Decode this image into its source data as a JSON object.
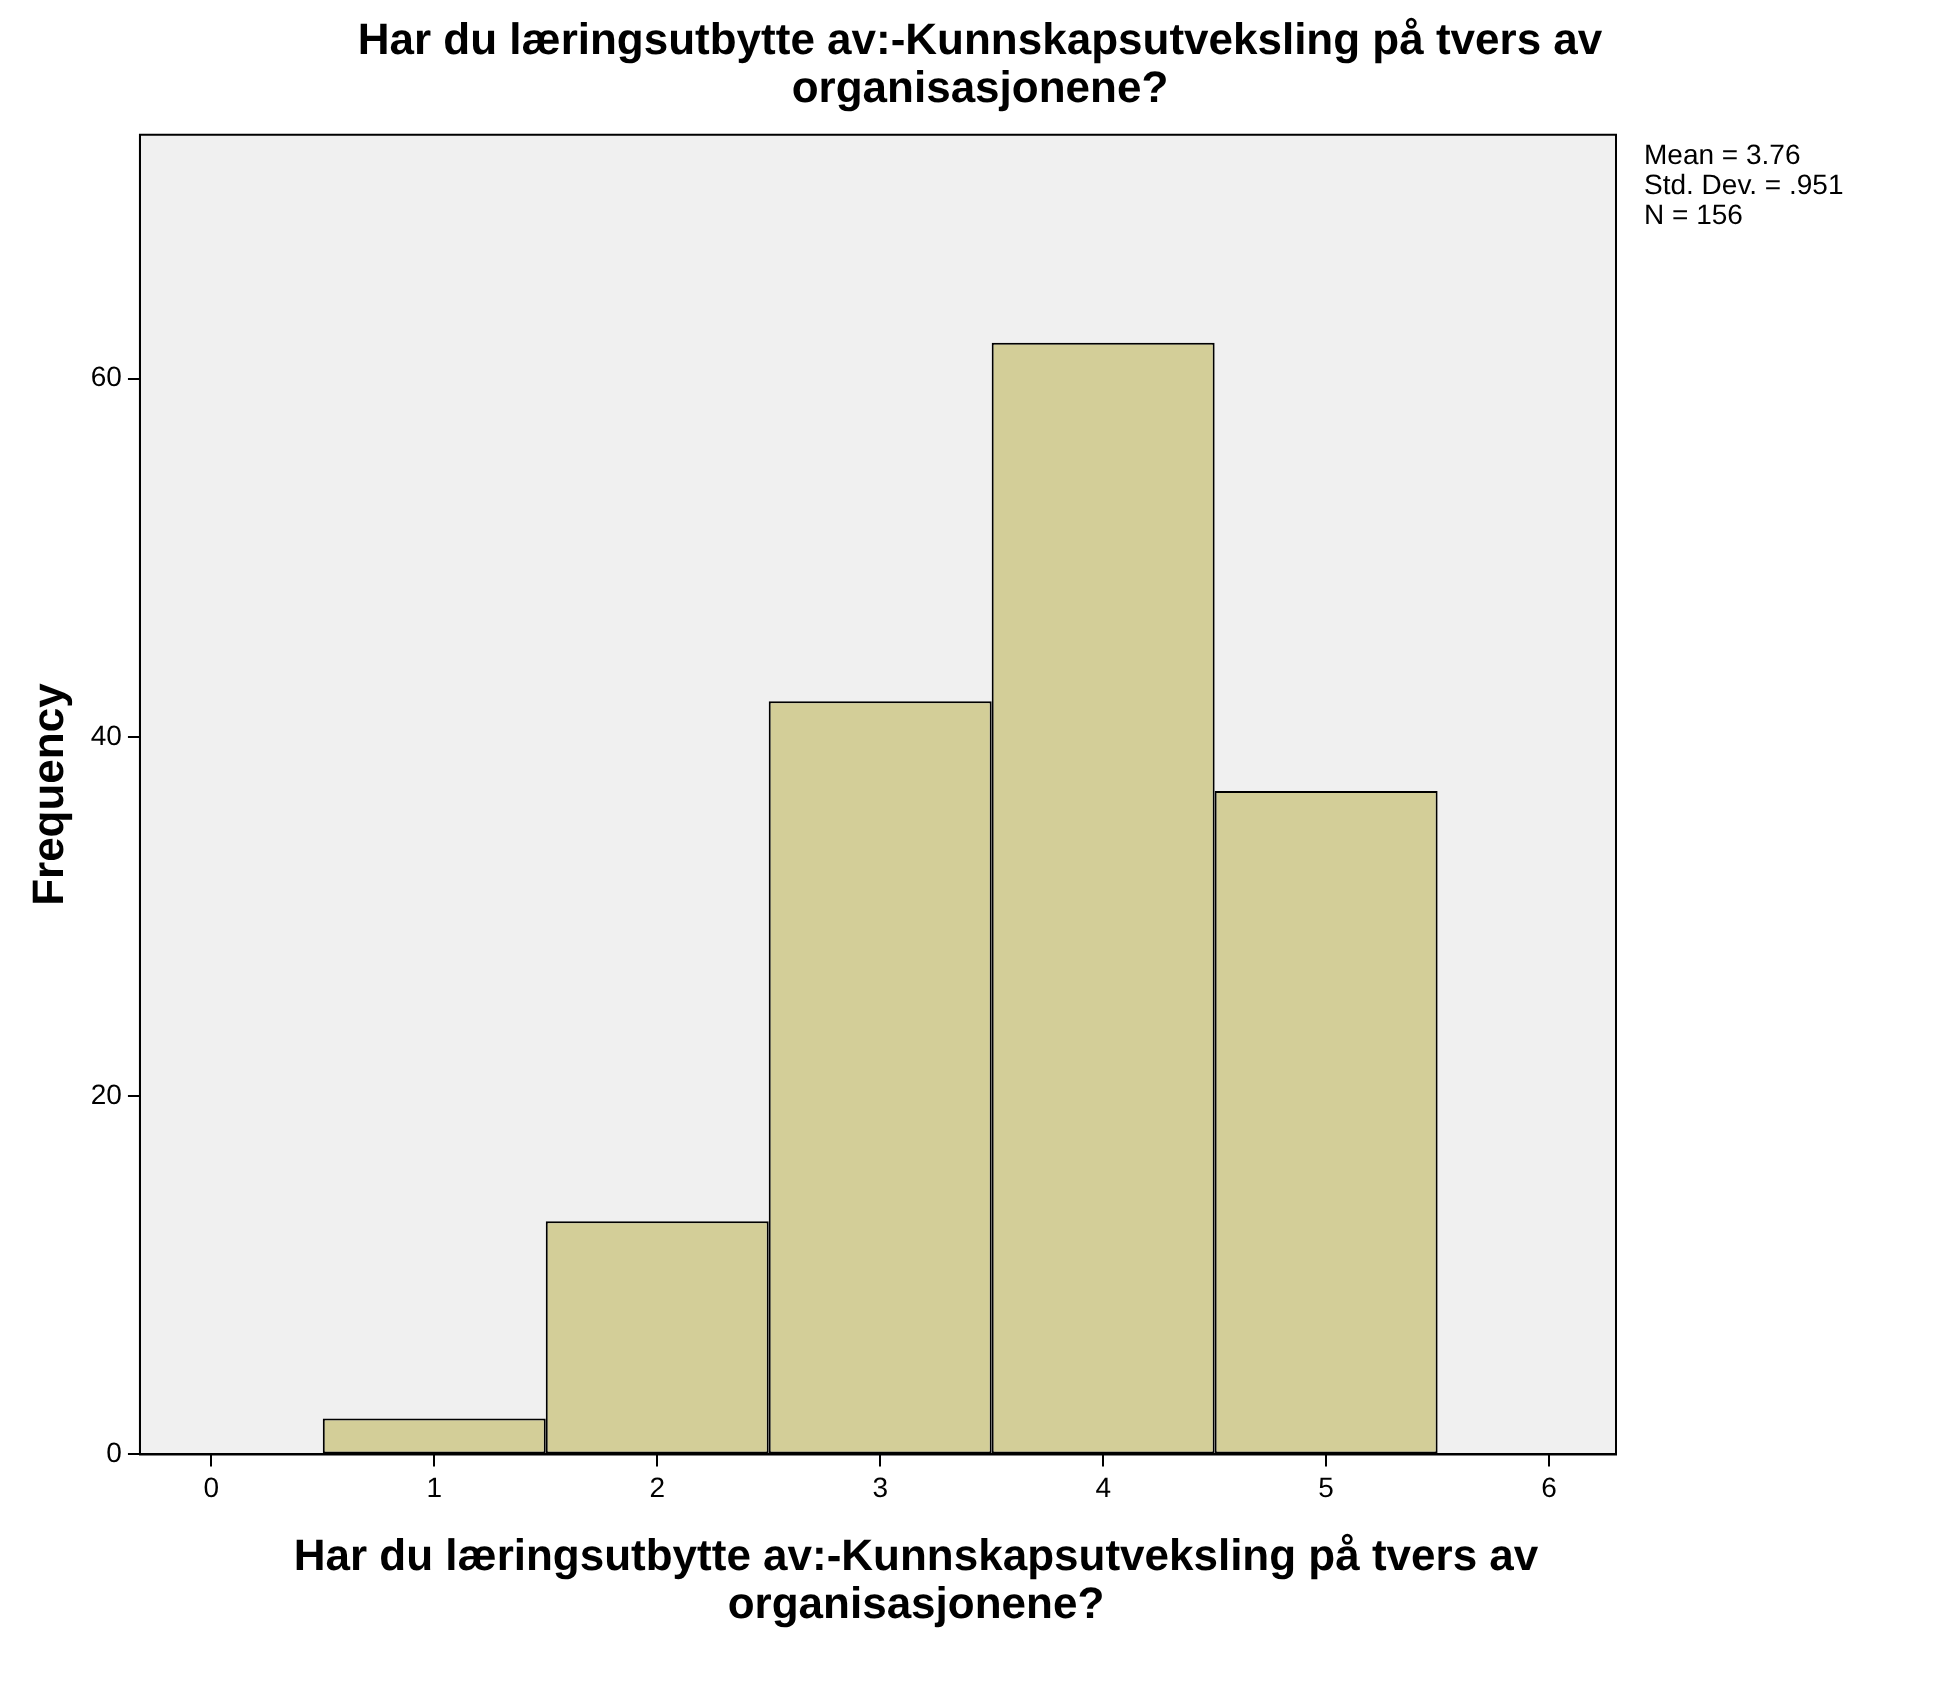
{
  "chart_data": {
    "type": "histogram",
    "title": "Har du læringsutbytte av:-Kunnskapsutveksling på tvers av organisasjonene?",
    "xlabel": "Har du læringsutbytte av:-Kunnskapsutveksling på tvers av organisasjonene?",
    "ylabel": "Frequency",
    "bins": [
      0.5,
      1.5,
      2.5,
      3.5,
      4.5,
      5.5
    ],
    "values": [
      2,
      13,
      42,
      62,
      37
    ],
    "color": "#d3ce98",
    "xlim": [
      -0.32,
      6.3
    ],
    "xticks": [
      0,
      1,
      2,
      3,
      4,
      5,
      6
    ],
    "ylim": [
      0,
      73.6
    ],
    "yticks": [
      0,
      20,
      40,
      60
    ],
    "grid": false,
    "legend": false,
    "annotations": [
      "Mean = 3.76",
      "Std. Dev. = .951",
      "N = 156"
    ]
  }
}
